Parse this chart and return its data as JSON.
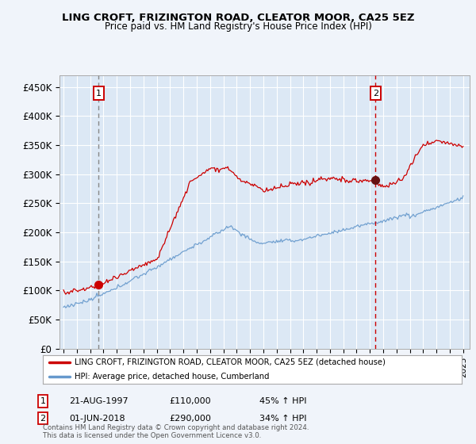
{
  "title": "LING CROFT, FRIZINGTON ROAD, CLEATOR MOOR, CA25 5EZ",
  "subtitle": "Price paid vs. HM Land Registry's House Price Index (HPI)",
  "ylim": [
    0,
    470000
  ],
  "yticks": [
    0,
    50000,
    100000,
    150000,
    200000,
    250000,
    300000,
    350000,
    400000,
    450000
  ],
  "ytick_labels": [
    "£0",
    "£50K",
    "£100K",
    "£150K",
    "£200K",
    "£250K",
    "£300K",
    "£350K",
    "£400K",
    "£450K"
  ],
  "sale1_year": 1997.646,
  "sale1_price": 110000,
  "sale1_label": "1",
  "sale1_date": "21-AUG-1997",
  "sale1_amount": "£110,000",
  "sale1_hpi": "45% ↑ HPI",
  "sale2_year": 2018.42,
  "sale2_price": 290000,
  "sale2_label": "2",
  "sale2_date": "01-JUN-2018",
  "sale2_amount": "£290,000",
  "sale2_hpi": "34% ↑ HPI",
  "legend_line1": "LING CROFT, FRIZINGTON ROAD, CLEATOR MOOR, CA25 5EZ (detached house)",
  "legend_line2": "HPI: Average price, detached house, Cumberland",
  "footer": "Contains HM Land Registry data © Crown copyright and database right 2024.\nThis data is licensed under the Open Government Licence v3.0.",
  "red_color": "#cc0000",
  "blue_color": "#6699cc",
  "background_color": "#dce8f5",
  "plot_bg_color": "#dce8f5",
  "grid_color": "#ffffff",
  "outer_bg": "#f0f4fa"
}
